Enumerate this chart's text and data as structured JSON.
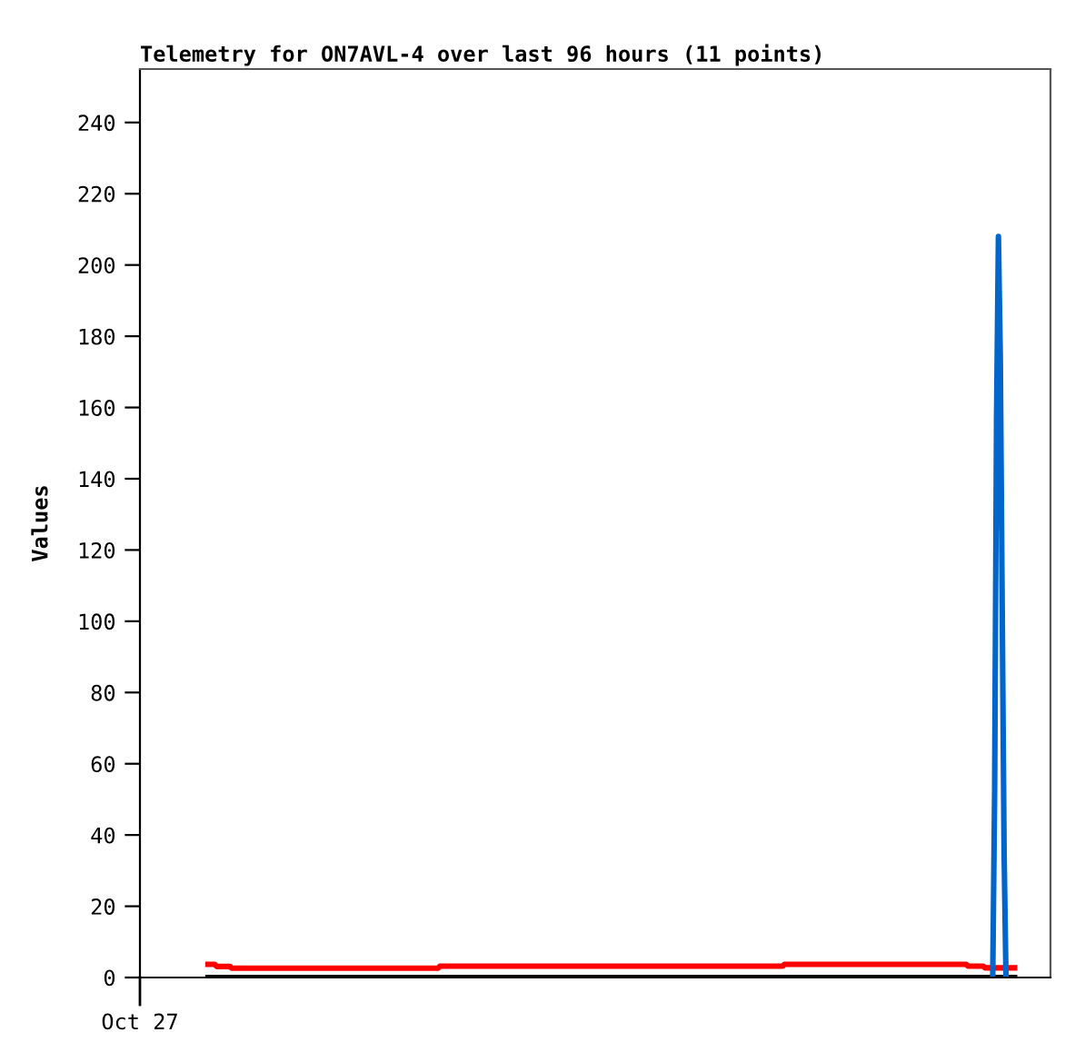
{
  "chart_data": {
    "type": "line",
    "title": "Telemetry for ON7AVL-4 over last 96 hours (11 points)",
    "ylabel": "Values",
    "annotations": [
      "Oct 27"
    ],
    "ylim": [
      0,
      255
    ],
    "yticks": [
      0,
      20,
      40,
      60,
      80,
      100,
      120,
      140,
      160,
      180,
      200,
      220,
      240
    ],
    "grid": false,
    "legend": false,
    "categories": [
      null,
      null,
      null,
      null,
      null,
      null,
      null,
      null,
      null,
      null,
      null,
      null,
      null,
      null,
      null,
      null,
      null,
      null,
      null,
      null,
      null,
      null,
      null,
      null,
      null,
      null,
      null,
      null,
      null,
      null,
      null,
      null,
      null,
      null,
      null,
      null,
      null,
      null,
      null,
      null,
      null,
      null,
      null,
      null,
      null,
      null,
      null,
      null,
      null,
      null,
      null,
      null,
      null,
      null,
      null,
      null,
      null,
      null,
      null,
      null,
      null,
      null,
      null,
      null,
      null,
      null,
      null,
      null,
      null,
      null,
      null,
      null,
      null,
      null,
      null,
      null,
      null,
      null,
      null,
      null,
      null,
      null,
      null,
      null,
      null,
      null,
      null,
      null,
      null,
      null,
      null,
      null,
      null,
      null,
      null,
      null,
      null,
      null,
      null,
      null,
      null,
      null,
      null,
      null,
      null,
      null,
      null,
      null,
      null,
      null,
      null,
      null,
      null,
      null,
      null,
      null,
      null,
      null,
      null,
      null,
      null,
      null,
      null,
      null,
      null,
      null,
      null,
      null,
      null,
      null,
      null,
      null,
      null,
      null,
      null,
      null,
      null,
      null,
      null,
      null,
      null,
      null,
      null,
      null,
      null,
      null,
      null,
      null,
      null,
      null,
      null,
      null,
      null,
      null,
      null,
      null,
      null,
      null,
      null,
      null,
      null,
      null,
      null,
      null,
      null,
      null,
      null,
      null,
      null,
      null,
      null,
      null,
      null,
      null,
      null,
      null,
      null,
      null,
      null,
      null,
      null,
      null,
      null,
      null,
      null,
      null,
      null,
      null,
      null,
      null,
      null,
      null,
      null,
      null,
      null,
      null,
      null,
      null,
      null,
      null,
      null,
      null,
      null,
      null,
      null,
      null,
      null,
      null,
      null,
      null,
      null,
      null,
      null,
      null,
      null,
      null,
      null,
      null,
      null,
      null,
      null,
      null,
      null,
      null,
      null,
      null,
      null,
      null,
      null,
      null,
      null,
      null,
      null,
      null,
      null,
      null,
      null,
      null,
      null,
      null,
      null,
      null,
      null,
      null,
      null,
      null,
      null,
      null,
      null,
      null,
      null,
      null,
      null,
      null,
      null,
      null,
      null,
      null,
      null,
      null,
      null,
      null,
      null,
      null,
      null,
      null,
      null,
      null,
      null,
      null,
      null,
      null,
      null,
      null,
      null,
      null,
      null,
      null,
      null,
      null,
      null,
      null,
      null,
      null,
      null,
      null,
      null,
      null,
      null,
      null,
      null,
      null,
      null,
      null,
      null,
      null,
      null,
      null,
      null,
      null,
      null,
      null,
      null,
      null,
      null,
      null,
      null,
      null,
      null,
      null,
      null,
      null,
      null,
      null,
      null,
      null,
      null,
      null,
      null,
      null,
      null,
      null,
      null,
      null,
      null,
      null,
      null,
      null,
      null,
      null,
      null,
      null,
      null,
      null,
      null,
      null,
      null,
      null,
      null,
      null,
      null,
      null,
      null,
      null,
      null,
      null,
      null,
      null,
      null,
      null,
      null,
      null,
      null,
      null,
      null,
      null,
      null,
      null,
      null,
      null,
      null,
      null,
      null,
      null,
      null,
      null,
      null,
      null,
      null,
      null,
      null,
      null,
      null,
      null,
      null,
      null,
      null,
      null,
      null,
      null,
      null,
      null,
      null,
      null,
      null,
      null,
      null,
      null,
      null,
      null,
      null,
      null,
      null,
      null,
      null,
      null,
      null,
      null,
      null,
      null,
      null,
      null,
      null,
      null,
      null,
      null,
      null,
      null,
      null,
      null,
      null,
      null,
      null,
      null,
      null,
      null,
      null,
      null,
      null,
      null,
      null,
      null,
      null,
      null,
      null,
      null,
      null,
      null,
      null,
      null,
      null,
      null,
      null,
      null,
      null,
      null,
      null,
      null,
      null,
      null,
      null,
      null,
      null,
      null,
      null,
      null,
      null,
      null,
      null,
      null,
      null,
      null,
      null,
      null,
      null,
      null,
      null,
      null,
      null,
      null,
      null,
      null,
      null,
      null,
      null,
      null,
      null,
      null,
      null,
      null,
      null,
      null,
      null,
      null,
      null,
      null,
      null,
      null,
      null,
      null,
      null
    ],
    "series": [
      {
        "color": "#000000",
        "values": [
          null,
          null,
          null,
          null,
          null,
          null,
          null,
          null,
          null,
          null,
          null,
          null,
          null,
          null,
          null,
          null,
          null,
          null,
          null,
          null,
          null,
          null,
          null,
          null,
          null,
          null,
          null,
          null,
          null,
          null,
          null,
          null,
          null,
          null,
          0,
          0,
          0,
          0,
          0,
          0,
          0,
          0,
          0,
          0,
          0,
          0,
          0,
          0,
          0,
          0,
          0,
          0,
          0,
          0,
          0,
          0,
          0,
          0,
          0,
          0,
          0,
          0,
          0,
          0,
          0,
          0,
          0,
          0,
          0,
          0,
          0,
          0,
          0,
          0,
          0,
          0,
          0,
          0,
          0,
          0,
          0,
          0,
          0,
          0,
          0,
          0,
          0,
          0,
          0,
          0,
          0,
          0,
          0,
          0,
          0,
          0,
          0,
          0,
          0,
          0,
          0,
          0,
          0,
          0,
          0,
          0,
          0,
          0,
          0,
          0,
          0,
          0,
          0,
          0,
          0,
          0,
          0,
          0,
          0,
          0,
          0,
          0,
          0,
          0,
          0,
          0,
          0,
          0,
          0,
          0,
          0,
          0,
          0,
          0,
          0,
          0,
          0,
          0,
          0,
          0,
          0,
          0,
          0,
          0,
          0,
          0,
          0,
          0,
          0,
          0,
          0,
          0,
          0,
          0,
          0,
          0,
          0,
          0,
          0,
          0,
          0,
          0,
          0,
          0,
          0,
          0,
          0,
          0,
          0,
          0,
          0,
          0,
          0,
          0,
          0,
          0,
          0,
          0,
          0,
          0,
          0,
          0,
          0,
          0,
          0,
          0,
          0,
          0,
          0,
          0,
          0,
          0,
          0,
          0,
          0,
          0,
          0,
          0,
          0,
          0,
          0,
          0,
          0,
          0,
          0,
          0,
          0,
          0,
          0,
          0,
          0,
          0,
          0,
          0,
          0,
          0,
          0,
          0,
          0,
          0,
          0,
          0,
          0,
          0,
          0,
          0,
          0,
          0,
          0,
          0,
          0,
          0,
          0,
          0,
          0,
          0,
          0,
          0,
          0,
          0,
          0,
          0,
          0,
          0,
          0,
          0,
          0,
          0,
          0,
          0,
          0,
          0,
          0,
          0,
          0,
          0,
          0,
          0,
          0,
          0,
          0,
          0,
          0,
          0,
          0,
          0,
          0,
          0,
          0,
          0,
          0,
          0,
          0,
          0,
          0,
          0,
          0,
          0,
          0,
          0,
          0,
          0,
          0,
          0,
          0,
          0,
          0,
          0,
          0,
          0,
          0,
          0,
          0,
          0,
          0,
          0,
          0,
          0,
          0,
          0,
          0,
          0,
          0,
          0,
          0,
          0,
          0,
          0,
          0,
          0,
          0,
          0,
          0,
          0,
          0,
          0,
          0,
          0,
          0,
          0,
          0,
          0,
          0,
          0,
          0,
          0,
          0,
          0,
          0,
          0,
          0,
          0,
          0,
          0,
          0,
          0,
          0,
          0,
          0,
          0,
          0,
          0,
          0,
          0,
          0,
          0,
          0,
          0,
          0,
          0,
          0,
          0,
          0,
          0,
          0,
          0,
          0,
          0,
          0,
          0,
          0,
          0,
          0,
          0,
          0,
          0,
          0,
          0,
          0,
          0,
          0,
          0,
          0,
          0,
          0,
          0,
          0,
          0,
          0,
          0,
          0,
          0,
          0,
          0,
          0,
          0,
          0,
          0,
          0,
          0,
          0,
          0,
          0,
          0,
          0,
          0,
          0,
          0,
          0,
          0,
          0,
          0,
          0,
          0,
          0,
          0,
          0,
          0,
          0,
          0,
          0,
          0,
          0,
          0,
          0,
          0,
          0,
          0,
          0,
          0,
          0,
          0,
          0,
          0,
          0,
          0,
          0,
          0,
          0,
          0,
          0,
          0,
          0,
          0,
          0,
          0,
          0,
          0,
          0,
          0,
          0,
          0,
          0,
          0,
          0,
          0,
          0,
          0,
          0,
          0,
          0,
          0,
          0,
          0,
          0,
          0,
          0,
          0,
          0,
          0,
          0,
          0,
          0,
          0,
          null,
          null,
          null,
          null,
          null,
          null,
          null,
          null,
          null,
          null,
          null,
          null,
          null,
          null,
          null,
          null,
          null
        ]
      },
      {
        "color": "#ff0000",
        "values": [
          null,
          null,
          null,
          null,
          null,
          null,
          null,
          null,
          null,
          null,
          null,
          null,
          null,
          null,
          null,
          null,
          null,
          null,
          null,
          null,
          null,
          null,
          null,
          null,
          null,
          null,
          null,
          null,
          null,
          null,
          null,
          null,
          null,
          null,
          3.7,
          3.7,
          3.7,
          3.7,
          3.7,
          3.7,
          3.1,
          3.1,
          3.1,
          3.1,
          3.1,
          3.1,
          3.1,
          3.1,
          2.6,
          2.6,
          2.6,
          2.6,
          2.6,
          2.6,
          2.6,
          2.6,
          2.6,
          2.6,
          2.6,
          2.6,
          2.6,
          2.6,
          2.6,
          2.6,
          2.6,
          2.6,
          2.6,
          2.6,
          2.6,
          2.6,
          2.6,
          2.6,
          2.6,
          2.6,
          2.6,
          2.6,
          2.6,
          2.6,
          2.6,
          2.6,
          2.6,
          2.6,
          2.6,
          2.6,
          2.6,
          2.6,
          2.6,
          2.6,
          2.6,
          2.6,
          2.6,
          2.6,
          2.6,
          2.6,
          2.6,
          2.6,
          2.6,
          2.6,
          2.6,
          2.6,
          2.6,
          2.6,
          2.6,
          2.6,
          2.6,
          2.6,
          2.6,
          2.6,
          2.6,
          2.6,
          2.6,
          2.6,
          2.6,
          2.6,
          2.6,
          2.6,
          2.6,
          2.6,
          2.6,
          2.6,
          2.6,
          2.6,
          2.6,
          2.6,
          2.6,
          2.6,
          2.6,
          2.6,
          2.6,
          2.6,
          2.6,
          2.6,
          2.6,
          2.6,
          2.6,
          2.6,
          2.6,
          2.6,
          2.6,
          2.6,
          2.6,
          2.6,
          2.6,
          2.6,
          2.6,
          2.6,
          2.6,
          2.6,
          2.6,
          2.6,
          2.6,
          2.6,
          2.6,
          2.6,
          2.6,
          2.6,
          2.6,
          2.6,
          3.2,
          3.2,
          3.2,
          3.2,
          3.2,
          3.2,
          3.2,
          3.2,
          3.2,
          3.2,
          3.2,
          3.2,
          3.2,
          3.2,
          3.2,
          3.2,
          3.2,
          3.2,
          3.2,
          3.2,
          3.2,
          3.2,
          3.2,
          3.2,
          3.2,
          3.2,
          3.2,
          3.2,
          3.2,
          3.2,
          3.2,
          3.2,
          3.2,
          3.2,
          3.2,
          3.2,
          3.2,
          3.2,
          3.2,
          3.2,
          3.2,
          3.2,
          3.2,
          3.2,
          3.2,
          3.2,
          3.2,
          3.2,
          3.2,
          3.2,
          3.2,
          3.2,
          3.2,
          3.2,
          3.2,
          3.2,
          3.2,
          3.2,
          3.2,
          3.2,
          3.2,
          3.2,
          3.2,
          3.2,
          3.2,
          3.2,
          3.2,
          3.2,
          3.2,
          3.2,
          3.2,
          3.2,
          3.2,
          3.2,
          3.2,
          3.2,
          3.2,
          3.2,
          3.2,
          3.2,
          3.2,
          3.2,
          3.2,
          3.2,
          3.2,
          3.2,
          3.2,
          3.2,
          3.2,
          3.2,
          3.2,
          3.2,
          3.2,
          3.2,
          3.2,
          3.2,
          3.2,
          3.2,
          3.2,
          3.2,
          3.2,
          3.2,
          3.2,
          3.2,
          3.2,
          3.2,
          3.2,
          3.2,
          3.2,
          3.2,
          3.2,
          3.2,
          3.2,
          3.2,
          3.2,
          3.2,
          3.2,
          3.2,
          3.2,
          3.2,
          3.2,
          3.2,
          3.2,
          3.2,
          3.2,
          3.2,
          3.2,
          3.2,
          3.2,
          3.2,
          3.2,
          3.2,
          3.2,
          3.2,
          3.2,
          3.2,
          3.2,
          3.2,
          3.2,
          3.2,
          3.2,
          3.2,
          3.2,
          3.2,
          3.2,
          3.2,
          3.2,
          3.2,
          3.2,
          3.2,
          3.2,
          3.2,
          3.2,
          3.2,
          3.2,
          3.2,
          3.2,
          3.2,
          3.2,
          3.2,
          3.2,
          3.2,
          3.2,
          3.2,
          3.2,
          3.2,
          3.2,
          3.2,
          3.2,
          3.2,
          3.2,
          3.2,
          3.2,
          3.2,
          3.2,
          3.2,
          3.2,
          3.2,
          3.2,
          3.2,
          3.2,
          3.2,
          3.7,
          3.7,
          3.7,
          3.7,
          3.7,
          3.7,
          3.7,
          3.7,
          3.7,
          3.7,
          3.7,
          3.7,
          3.7,
          3.7,
          3.7,
          3.7,
          3.7,
          3.7,
          3.7,
          3.7,
          3.7,
          3.7,
          3.7,
          3.7,
          3.7,
          3.7,
          3.7,
          3.7,
          3.7,
          3.7,
          3.7,
          3.7,
          3.7,
          3.7,
          3.7,
          3.7,
          3.7,
          3.7,
          3.7,
          3.7,
          3.7,
          3.7,
          3.7,
          3.7,
          3.7,
          3.7,
          3.7,
          3.7,
          3.7,
          3.7,
          3.7,
          3.7,
          3.7,
          3.7,
          3.7,
          3.7,
          3.7,
          3.7,
          3.7,
          3.7,
          3.7,
          3.7,
          3.7,
          3.7,
          3.7,
          3.7,
          3.7,
          3.7,
          3.7,
          3.7,
          3.7,
          3.7,
          3.7,
          3.7,
          3.7,
          3.7,
          3.7,
          3.7,
          3.7,
          3.7,
          3.7,
          3.7,
          3.7,
          3.7,
          3.7,
          3.7,
          3.7,
          3.7,
          3.7,
          3.7,
          3.7,
          3.7,
          3.7,
          3.7,
          3.7,
          3.7,
          3.7,
          3.2,
          3.2,
          3.2,
          3.2,
          3.2,
          3.2,
          3.2,
          3.2,
          3.2,
          2.7,
          2.7,
          2.7,
          2.7,
          2.7,
          2.7,
          2.7,
          2.7,
          2.7,
          2.7,
          2.7,
          2.7,
          2.7,
          2.7,
          2.7,
          2.7,
          2.7,
          2.7,
          null,
          null,
          null,
          null,
          null,
          null,
          null,
          null,
          null,
          null,
          null,
          null,
          null,
          null,
          null,
          null,
          null
        ]
      },
      {
        "color": "#0066cc",
        "values": [
          null,
          null,
          null,
          null,
          null,
          null,
          null,
          null,
          null,
          null,
          null,
          null,
          null,
          null,
          null,
          null,
          null,
          null,
          null,
          null,
          null,
          null,
          null,
          null,
          null,
          null,
          null,
          null,
          null,
          null,
          null,
          null,
          null,
          null,
          null,
          null,
          null,
          null,
          null,
          null,
          null,
          null,
          null,
          null,
          null,
          null,
          null,
          null,
          null,
          null,
          null,
          null,
          null,
          null,
          null,
          null,
          null,
          null,
          null,
          null,
          null,
          null,
          null,
          null,
          null,
          null,
          null,
          null,
          null,
          null,
          null,
          null,
          null,
          null,
          null,
          null,
          null,
          null,
          null,
          null,
          null,
          null,
          null,
          null,
          null,
          null,
          null,
          null,
          null,
          null,
          null,
          null,
          null,
          null,
          null,
          null,
          null,
          null,
          null,
          null,
          null,
          null,
          null,
          null,
          null,
          null,
          null,
          null,
          null,
          null,
          null,
          null,
          null,
          null,
          null,
          null,
          null,
          null,
          null,
          null,
          null,
          null,
          null,
          null,
          null,
          null,
          null,
          null,
          null,
          null,
          null,
          null,
          null,
          null,
          null,
          null,
          null,
          null,
          null,
          null,
          null,
          null,
          null,
          null,
          null,
          null,
          null,
          null,
          null,
          null,
          null,
          null,
          null,
          null,
          null,
          null,
          null,
          null,
          null,
          null,
          null,
          null,
          null,
          null,
          null,
          null,
          null,
          null,
          null,
          null,
          null,
          null,
          null,
          null,
          null,
          null,
          null,
          null,
          null,
          null,
          null,
          null,
          null,
          null,
          null,
          null,
          null,
          null,
          null,
          null,
          null,
          null,
          null,
          null,
          null,
          null,
          null,
          null,
          null,
          null,
          null,
          null,
          null,
          null,
          null,
          null,
          null,
          null,
          null,
          null,
          null,
          null,
          null,
          null,
          null,
          null,
          null,
          null,
          null,
          null,
          null,
          null,
          null,
          null,
          null,
          null,
          null,
          null,
          null,
          null,
          null,
          null,
          null,
          null,
          null,
          null,
          null,
          null,
          null,
          null,
          null,
          null,
          null,
          null,
          null,
          null,
          null,
          null,
          null,
          null,
          null,
          null,
          null,
          null,
          null,
          null,
          null,
          null,
          null,
          null,
          null,
          null,
          null,
          null,
          null,
          null,
          null,
          null,
          null,
          null,
          null,
          null,
          null,
          null,
          null,
          null,
          null,
          null,
          null,
          null,
          null,
          null,
          null,
          null,
          null,
          null,
          null,
          null,
          null,
          null,
          null,
          null,
          null,
          null,
          null,
          null,
          null,
          null,
          null,
          null,
          null,
          null,
          null,
          null,
          null,
          null,
          null,
          null,
          null,
          null,
          null,
          null,
          null,
          null,
          null,
          null,
          null,
          null,
          null,
          null,
          null,
          null,
          null,
          null,
          null,
          null,
          null,
          null,
          null,
          null,
          null,
          null,
          null,
          null,
          null,
          null,
          null,
          null,
          null,
          null,
          null,
          null,
          null,
          null,
          null,
          null,
          null,
          null,
          null,
          null,
          null,
          null,
          null,
          null,
          null,
          null,
          null,
          null,
          null,
          null,
          null,
          null,
          null,
          null,
          null,
          null,
          null,
          null,
          null,
          null,
          null,
          null,
          null,
          null,
          null,
          null,
          null,
          null,
          null,
          null,
          null,
          null,
          null,
          null,
          null,
          null,
          null,
          null,
          null,
          null,
          null,
          null,
          null,
          null,
          null,
          null,
          null,
          null,
          null,
          null,
          null,
          null,
          null,
          null,
          null,
          null,
          null,
          null,
          null,
          null,
          null,
          null,
          null,
          null,
          null,
          null,
          null,
          null,
          null,
          null,
          null,
          null,
          null,
          null,
          null,
          null,
          null,
          null,
          null,
          null,
          null,
          null,
          null,
          null,
          null,
          null,
          null,
          null,
          null,
          null,
          null,
          null,
          null,
          null,
          null,
          null,
          null,
          null,
          null,
          null,
          0,
          52,
          156,
          208,
          174,
          104,
          35,
          0,
          null,
          null,
          null,
          null,
          null,
          null,
          null,
          null,
          null,
          null,
          null,
          null,
          null,
          null,
          null,
          null,
          null,
          null,
          null,
          null,
          null,
          null,
          null
        ]
      }
    ]
  }
}
